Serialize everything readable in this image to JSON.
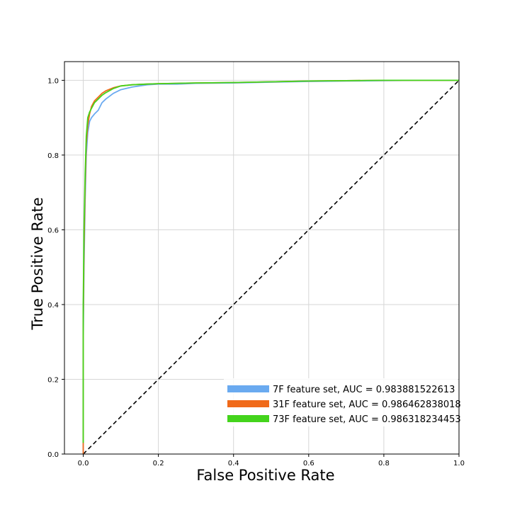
{
  "chart_data": {
    "type": "line",
    "title": "",
    "xlabel": "False Positive Rate",
    "ylabel": "True Positive Rate",
    "xlim": [
      -0.05,
      1.0
    ],
    "ylim": [
      0.0,
      1.05
    ],
    "xticks": [
      0.0,
      0.2,
      0.4,
      0.6,
      0.8,
      1.0
    ],
    "yticks": [
      0.0,
      0.2,
      0.4,
      0.6,
      0.8,
      1.0
    ],
    "xtick_labels": [
      "0.0",
      "0.2",
      "0.4",
      "0.6",
      "0.8",
      "1.0"
    ],
    "ytick_labels": [
      "0.0",
      "0.2",
      "0.4",
      "0.6",
      "0.8",
      "1.0"
    ],
    "grid": true,
    "legend_position": "lower-right",
    "series": [
      {
        "name": "7F feature set, AUC = 0.983881522613",
        "color": "#6aaaf0",
        "x": [
          0.0,
          0.0,
          0.002,
          0.005,
          0.008,
          0.012,
          0.017,
          0.022,
          0.03,
          0.04,
          0.05,
          0.06,
          0.08,
          0.1,
          0.13,
          0.17,
          0.2,
          0.25,
          0.3,
          0.4,
          0.5,
          0.6,
          0.7,
          0.8,
          0.9,
          1.0
        ],
        "y": [
          0.0,
          0.3,
          0.5,
          0.68,
          0.8,
          0.86,
          0.89,
          0.9,
          0.91,
          0.92,
          0.94,
          0.95,
          0.965,
          0.975,
          0.982,
          0.988,
          0.99,
          0.99,
          0.992,
          0.993,
          0.995,
          0.997,
          0.998,
          0.999,
          1.0,
          1.0
        ]
      },
      {
        "name": "31F feature set, AUC = 0.986462838018",
        "color": "#f06a1a",
        "x": [
          0.0,
          0.0,
          0.002,
          0.005,
          0.008,
          0.012,
          0.017,
          0.022,
          0.03,
          0.04,
          0.05,
          0.06,
          0.08,
          0.1,
          0.13,
          0.17,
          0.2,
          0.25,
          0.3,
          0.4,
          0.5,
          0.6,
          0.7,
          0.8,
          0.9,
          1.0
        ],
        "y": [
          0.0,
          0.35,
          0.55,
          0.72,
          0.83,
          0.88,
          0.91,
          0.93,
          0.945,
          0.955,
          0.965,
          0.972,
          0.98,
          0.985,
          0.988,
          0.99,
          0.991,
          0.992,
          0.993,
          0.994,
          0.996,
          0.998,
          0.999,
          1.0,
          1.0,
          1.0
        ]
      },
      {
        "name": "73F feature set, AUC = 0.986318234453",
        "color": "#44d41c",
        "x": [
          0.0,
          0.0,
          0.002,
          0.005,
          0.008,
          0.012,
          0.017,
          0.022,
          0.03,
          0.04,
          0.05,
          0.06,
          0.08,
          0.1,
          0.13,
          0.17,
          0.2,
          0.25,
          0.3,
          0.4,
          0.5,
          0.6,
          0.7,
          0.8,
          0.9,
          1.0
        ],
        "y": [
          0.03,
          0.4,
          0.6,
          0.75,
          0.85,
          0.9,
          0.915,
          0.925,
          0.94,
          0.95,
          0.96,
          0.967,
          0.978,
          0.985,
          0.988,
          0.99,
          0.991,
          0.992,
          0.993,
          0.994,
          0.996,
          0.998,
          0.999,
          1.0,
          1.0,
          1.0
        ]
      }
    ],
    "reference_line": {
      "x": [
        0.0,
        1.0
      ],
      "y": [
        0.0,
        1.0
      ],
      "color": "#000000",
      "style": "dashed"
    }
  }
}
